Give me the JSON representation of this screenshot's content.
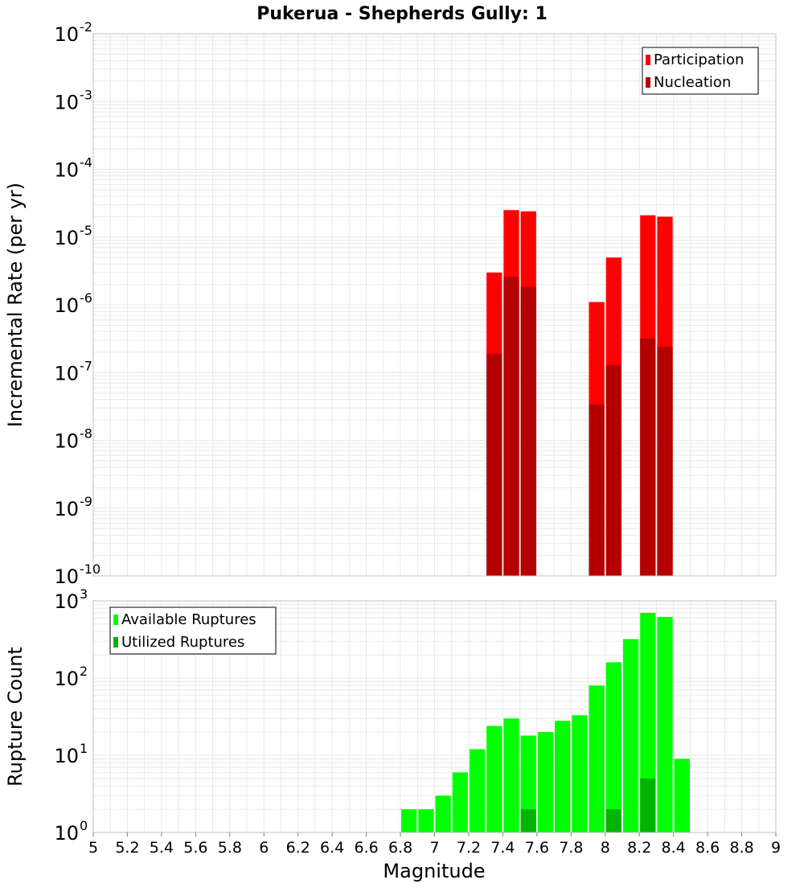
{
  "chart_data": [
    {
      "type": "bar",
      "title": "Pukerua - Shepherds Gully: 1",
      "xlabel": "",
      "ylabel": "Incremental Rate (per yr)",
      "x_axis": {
        "min": 5.0,
        "max": 9.0
      },
      "y_axis": {
        "scale": "log",
        "min_exp": -10,
        "max_exp": -2
      },
      "bin_width": 0.1,
      "grid": true,
      "legend": {
        "placement": "top-right"
      },
      "overlay": true,
      "series": [
        {
          "name": "Participation",
          "color": "#ff0000",
          "points": [
            {
              "x": 7.35,
              "y": 3e-06
            },
            {
              "x": 7.45,
              "y": 2.5e-05
            },
            {
              "x": 7.55,
              "y": 2.4e-05
            },
            {
              "x": 7.95,
              "y": 1.1e-06
            },
            {
              "x": 8.05,
              "y": 5e-06
            },
            {
              "x": 8.25,
              "y": 2.1e-05
            },
            {
              "x": 8.35,
              "y": 2e-05
            }
          ]
        },
        {
          "name": "Nucleation",
          "color": "#b40000",
          "points": [
            {
              "x": 7.35,
              "y": 1.9e-07
            },
            {
              "x": 7.45,
              "y": 2.6e-06
            },
            {
              "x": 7.55,
              "y": 1.85e-06
            },
            {
              "x": 7.95,
              "y": 3.4e-08
            },
            {
              "x": 8.05,
              "y": 1.3e-07
            },
            {
              "x": 8.25,
              "y": 3.2e-07
            },
            {
              "x": 8.35,
              "y": 2.4e-07
            }
          ]
        }
      ]
    },
    {
      "type": "bar",
      "title": "",
      "xlabel": "Magnitude",
      "ylabel": "Rupture Count",
      "x_axis": {
        "min": 5.0,
        "max": 9.0,
        "ticks": [
          "5",
          "5.2",
          "5.4",
          "5.6",
          "5.8",
          "6",
          "6.2",
          "6.4",
          "6.6",
          "6.8",
          "7",
          "7.2",
          "7.4",
          "7.6",
          "7.8",
          "8",
          "8.2",
          "8.4",
          "8.6",
          "8.8",
          "9"
        ]
      },
      "y_axis": {
        "scale": "log",
        "min_exp": 0,
        "max_exp": 3
      },
      "bin_width": 0.1,
      "grid": true,
      "legend": {
        "placement": "top-left"
      },
      "overlay": true,
      "series": [
        {
          "name": "Available Ruptures",
          "color": "#00ff00",
          "points": [
            {
              "x": 6.45,
              "y": 1
            },
            {
              "x": 6.85,
              "y": 2
            },
            {
              "x": 6.95,
              "y": 2
            },
            {
              "x": 7.05,
              "y": 3
            },
            {
              "x": 7.15,
              "y": 6
            },
            {
              "x": 7.25,
              "y": 12
            },
            {
              "x": 7.35,
              "y": 24
            },
            {
              "x": 7.45,
              "y": 30
            },
            {
              "x": 7.55,
              "y": 18
            },
            {
              "x": 7.65,
              "y": 20
            },
            {
              "x": 7.75,
              "y": 28
            },
            {
              "x": 7.85,
              "y": 33
            },
            {
              "x": 7.95,
              "y": 80
            },
            {
              "x": 8.05,
              "y": 160
            },
            {
              "x": 8.15,
              "y": 320
            },
            {
              "x": 8.25,
              "y": 700
            },
            {
              "x": 8.35,
              "y": 620
            },
            {
              "x": 8.45,
              "y": 9
            }
          ]
        },
        {
          "name": "Utilized Ruptures",
          "color": "#00b400",
          "points": [
            {
              "x": 7.35,
              "y": 1
            },
            {
              "x": 7.45,
              "y": 1
            },
            {
              "x": 7.55,
              "y": 2
            },
            {
              "x": 7.95,
              "y": 1
            },
            {
              "x": 8.05,
              "y": 2
            },
            {
              "x": 8.25,
              "y": 5
            },
            {
              "x": 8.35,
              "y": 1
            }
          ]
        }
      ]
    }
  ]
}
